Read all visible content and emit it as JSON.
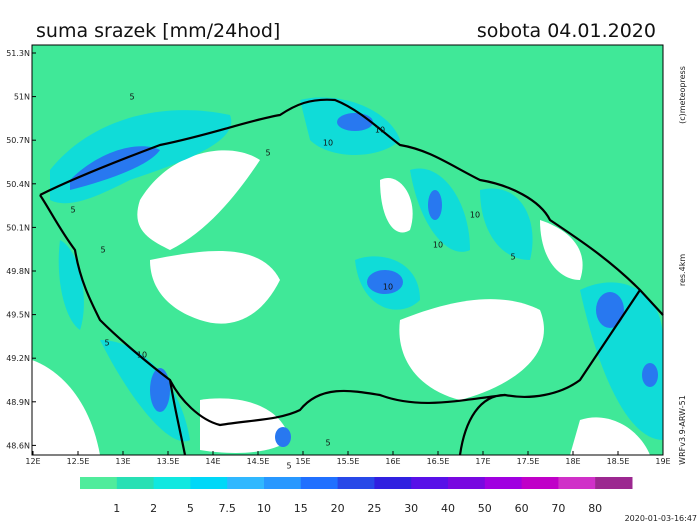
{
  "header": {
    "title": "suma srazek [mm/24hod]",
    "date": "sobota 04.01.2020"
  },
  "axes": {
    "lat": [
      "51.3N",
      "51N",
      "50.7N",
      "50.4N",
      "50.1N",
      "49.8N",
      "49.5N",
      "49.2N",
      "48.9N",
      "48.6N"
    ],
    "lon": [
      "12E",
      "12.5E",
      "13E",
      "13.5E",
      "14E",
      "14.5E",
      "15E",
      "15.5E",
      "16E",
      "16.5E",
      "17E",
      "17.5E",
      "18E",
      "18.5E",
      "19E"
    ]
  },
  "side": {
    "copyright": "(c)meteopress",
    "resolution": "res.4km",
    "model": "WRFv3.9-ARW-51"
  },
  "contour_labels": [
    "5",
    "5",
    "5",
    "5",
    "10",
    "10",
    "10",
    "10",
    "5",
    "5",
    "10",
    "5",
    "5",
    "10"
  ],
  "legend": {
    "labels": [
      "1",
      "2",
      "5",
      "7.5",
      "10",
      "15",
      "20",
      "25",
      "30",
      "40",
      "50",
      "60",
      "70",
      "80"
    ],
    "colors": [
      "#50ec9c",
      "#28e0b4",
      "#10e8e0",
      "#00d8f8",
      "#30b8ff",
      "#2898ff",
      "#2070ff",
      "#2848e8",
      "#3020e0",
      "#5810e8",
      "#7808e0",
      "#a000e0",
      "#c000c8",
      "#d030c8",
      "#9c2890"
    ]
  },
  "timestamp": "2020-01-03-16:47"
}
